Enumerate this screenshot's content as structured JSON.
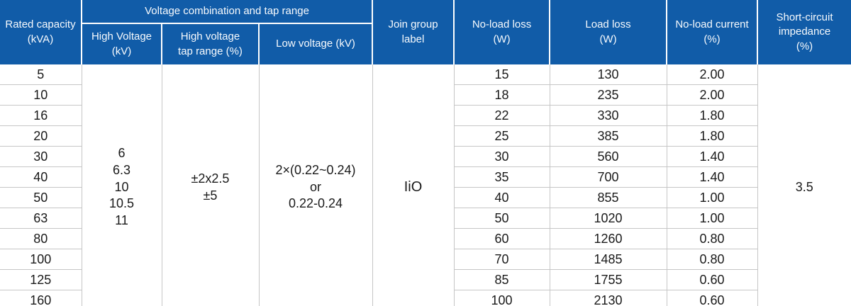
{
  "colors": {
    "header_background": "#115CA8",
    "header_text": "#F7FAFD",
    "grid_line": "#C6C6C6",
    "body_text": "#1A1A1A",
    "bottom_border": "#A9A9A9"
  },
  "header": {
    "rated_capacity": "Rated capacity\n(kVA)",
    "voltage_group": "Voltage combination and tap range",
    "high_voltage": "High Voltage\n(kV)",
    "tap_range": "High voltage\ntap range (%)",
    "low_voltage": "Low voltage (kV)",
    "join_group": "Join group\nlabel",
    "no_load_loss": "No-load loss\n(W)",
    "load_loss": "Load loss\n(W)",
    "no_load_current": "No-load current\n(%)",
    "short_circuit": "Short-circuit\nimpedance\n(%)"
  },
  "merged": {
    "high_voltage": "6\n6.3\n10\n10.5\n11",
    "tap_range": "±2x2.5\n±5",
    "low_voltage": "2×(0.22~0.24)\nor\n0.22-0.24",
    "join_group": "IiO",
    "short_circuit": "3.5"
  },
  "rows": [
    {
      "rated_capacity": "5",
      "no_load_loss": "15",
      "load_loss": "130",
      "no_load_current": "2.00"
    },
    {
      "rated_capacity": "10",
      "no_load_loss": "18",
      "load_loss": "235",
      "no_load_current": "2.00"
    },
    {
      "rated_capacity": "16",
      "no_load_loss": "22",
      "load_loss": "330",
      "no_load_current": "1.80"
    },
    {
      "rated_capacity": "20",
      "no_load_loss": "25",
      "load_loss": "385",
      "no_load_current": "1.80"
    },
    {
      "rated_capacity": "30",
      "no_load_loss": "30",
      "load_loss": "560",
      "no_load_current": "1.40"
    },
    {
      "rated_capacity": "40",
      "no_load_loss": "35",
      "load_loss": "700",
      "no_load_current": "1.40"
    },
    {
      "rated_capacity": "50",
      "no_load_loss": "40",
      "load_loss": "855",
      "no_load_current": "1.00"
    },
    {
      "rated_capacity": "63",
      "no_load_loss": "50",
      "load_loss": "1020",
      "no_load_current": "1.00"
    },
    {
      "rated_capacity": "80",
      "no_load_loss": "60",
      "load_loss": "1260",
      "no_load_current": "0.80"
    },
    {
      "rated_capacity": "100",
      "no_load_loss": "70",
      "load_loss": "1485",
      "no_load_current": "0.80"
    },
    {
      "rated_capacity": "125",
      "no_load_loss": "85",
      "load_loss": "1755",
      "no_load_current": "0.60"
    },
    {
      "rated_capacity": "160",
      "no_load_loss": "100",
      "load_loss": "2130",
      "no_load_current": "0.60"
    }
  ],
  "chart_data": {
    "type": "table",
    "columns": [
      "Rated capacity (kVA)",
      "High Voltage (kV)",
      "High voltage tap range (%)",
      "Low voltage (kV)",
      "Join group label",
      "No-load loss (W)",
      "Load loss (W)",
      "No-load current (%)",
      "Short-circuit impedance (%)"
    ],
    "column_group_header": {
      "label": "Voltage combination and tap range",
      "spans_columns": [
        1,
        2,
        3
      ]
    },
    "merged_column_values": {
      "High Voltage (kV)": "6, 6.3, 10, 10.5, 11",
      "High voltage tap range (%)": "±2x2.5, ±5",
      "Low voltage (kV)": "2×(0.22~0.24) or 0.22-0.24",
      "Join group label": "IiO",
      "Short-circuit impedance (%)": "3.5"
    },
    "per_row_values": {
      "Rated capacity (kVA)": [
        "5",
        "10",
        "16",
        "20",
        "30",
        "40",
        "50",
        "63",
        "80",
        "100",
        "125",
        "160"
      ],
      "No-load loss (W)": [
        "15",
        "18",
        "22",
        "25",
        "30",
        "35",
        "40",
        "50",
        "60",
        "70",
        "85",
        "100"
      ],
      "Load loss (W)": [
        "130",
        "235",
        "330",
        "385",
        "560",
        "700",
        "855",
        "1020",
        "1260",
        "1485",
        "1755",
        "2130"
      ],
      "No-load current (%)": [
        "2.00",
        "2.00",
        "1.80",
        "1.80",
        "1.40",
        "1.40",
        "1.00",
        "1.00",
        "0.80",
        "0.80",
        "0.60",
        "0.60"
      ]
    }
  }
}
